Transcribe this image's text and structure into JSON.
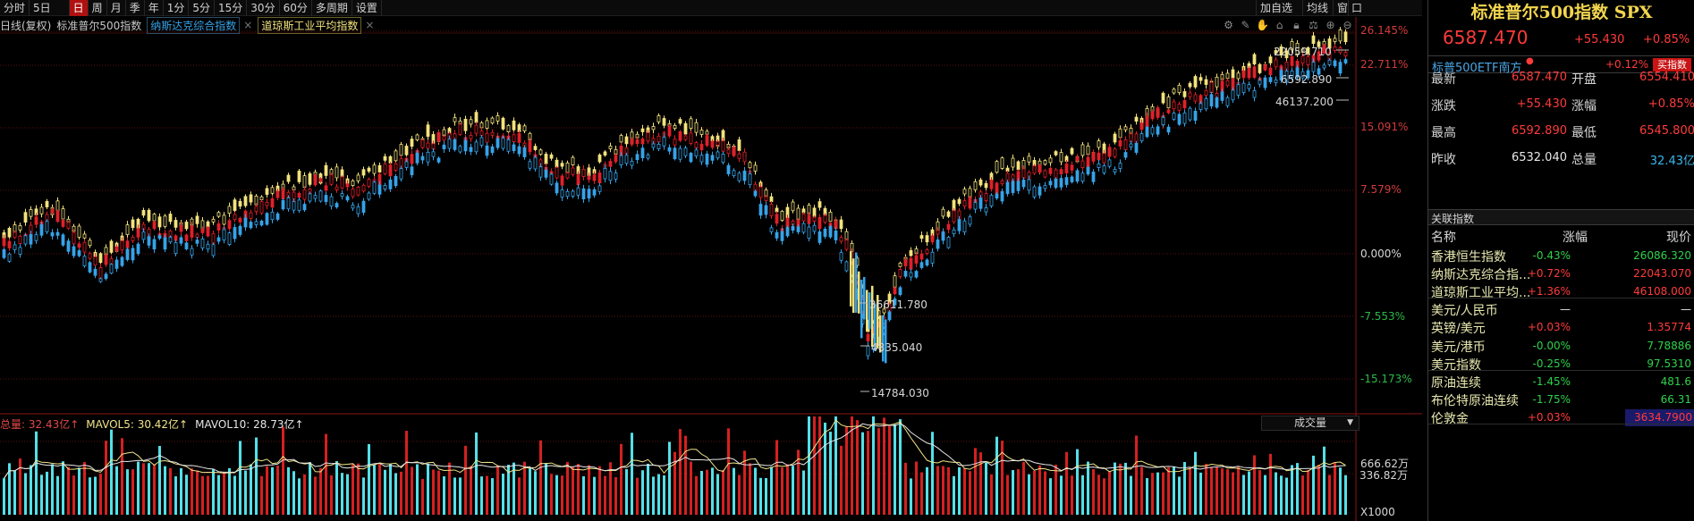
{
  "toolbar": {
    "items": [
      "分时",
      "5日",
      "日",
      "周",
      "月",
      "季",
      "年",
      "1分",
      "5分",
      "15分",
      "30分",
      "60分",
      "多周期",
      "设置"
    ],
    "active": "日",
    "right": [
      "加自选",
      "均线",
      "窗",
      "口"
    ]
  },
  "chart_header": {
    "period": "日线(复权)",
    "main_name": "标准普尔500指数",
    "overlay1": "纳斯达克综合指数",
    "overlay2": "道琼斯工业平均指数",
    "close_mark": "×"
  },
  "tool_icons": [
    "settings-icon",
    "pen-icon",
    "hand-icon",
    "home-icon",
    "lock-icon",
    "scale-icon",
    "plus-icon",
    "minus-icon"
  ],
  "right_axis": [
    "26.145%",
    "22.711%",
    "15.091%",
    "7.579%",
    "0.000%",
    "-7.553%",
    "-15.173%"
  ],
  "annotations": {
    "nas_high": "22059.710",
    "spx_high": "6592.890",
    "dj_high": "46137.200",
    "dj_low": "36611.780",
    "spx_low": "4835.040",
    "nas_low": "14784.030"
  },
  "volume": {
    "total_label": "总量: 32.43亿↑",
    "mavol5_label": "MAVOL5: 30.42亿↑",
    "mavol10_label": "MAVOL10: 28.73亿↑",
    "selector": "成交量",
    "axis": [
      "666.62万",
      "336.82万",
      "X1000"
    ]
  },
  "panel": {
    "title": "标准普尔500指数 SPX",
    "price": "6587.470",
    "change": "+55.430",
    "change_pct": "+0.85%",
    "etf_name": "标普500ETF南方",
    "etf_pct": "+0.12%",
    "etf_button": "买指数",
    "quote": [
      {
        "k": "最新",
        "v": "6587.470",
        "vc": "red",
        "k2": "开盘",
        "v2": "6554.410",
        "v2c": "red"
      },
      {
        "k": "涨跌",
        "v": "+55.430",
        "vc": "red",
        "k2": "涨幅",
        "v2": "+0.85%",
        "v2c": "red"
      },
      {
        "k": "最高",
        "v": "6592.890",
        "vc": "red",
        "k2": "最低",
        "v2": "6545.800",
        "v2c": "red"
      },
      {
        "k": "昨收",
        "v": "6532.040",
        "vc": "white",
        "k2": "总量",
        "v2": "32.43亿",
        "v2c": "cyan"
      }
    ],
    "related_title": "关联指数",
    "cols": [
      "名称",
      "涨幅",
      "现价"
    ],
    "related": [
      {
        "name": "香港恒生指数",
        "pct": "-0.43%",
        "pc": "green",
        "price": "26086.320",
        "prc": "green"
      },
      {
        "name": "纳斯达克综合指...",
        "pct": "+0.72%",
        "pc": "red",
        "price": "22043.070",
        "prc": "red"
      },
      {
        "name": "道琼斯工业平均...",
        "pct": "+1.36%",
        "pc": "red",
        "price": "46108.000",
        "prc": "red"
      },
      {
        "name": "美元/人民币",
        "pct": "—",
        "pc": "white",
        "price": "—",
        "prc": "white"
      },
      {
        "name": "英镑/美元",
        "pct": "+0.03%",
        "pc": "red",
        "price": "1.35774",
        "prc": "red"
      },
      {
        "name": "美元/港币",
        "pct": "-0.00%",
        "pc": "green",
        "price": "7.78886",
        "prc": "green"
      },
      {
        "name": "美元指数",
        "pct": "-0.25%",
        "pc": "green",
        "price": "97.5310",
        "prc": "green"
      },
      {
        "name": "原油连续",
        "pct": "-1.45%",
        "pc": "green",
        "price": "481.6",
        "prc": "green"
      },
      {
        "name": "布伦特原油连续",
        "pct": "-1.75%",
        "pc": "green",
        "price": "66.31",
        "prc": "green"
      },
      {
        "name": "伦敦金",
        "pct": "+0.03%",
        "pc": "red",
        "price": "3634.7900",
        "prc": "red"
      }
    ]
  },
  "colors": {
    "up": "#e0202a",
    "down": "#36a3e8",
    "dj": "#f2e27c",
    "accent": "#f3d64f",
    "grid": "#5a0e0e"
  }
}
